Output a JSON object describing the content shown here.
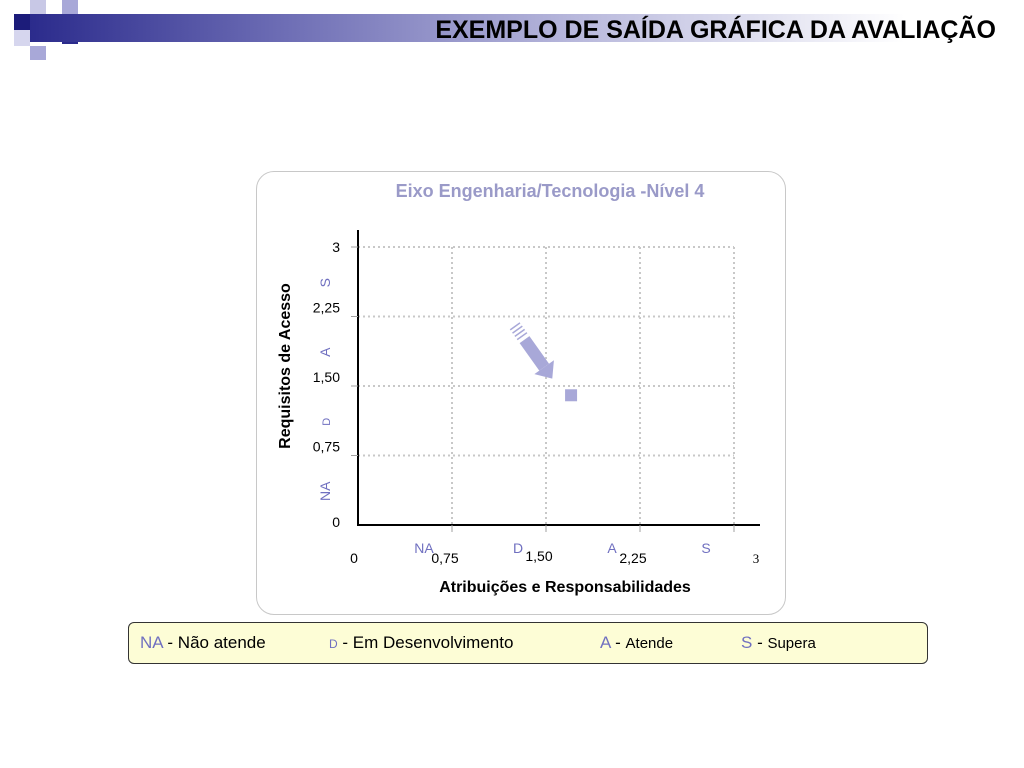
{
  "slide": {
    "title": "EXEMPLO DE SAÍDA GRÁFICA DA AVALIAÇÃO"
  },
  "colors": {
    "accent_dark": "#1c1c7a",
    "accent_light": "#a8a8d8",
    "category": "#7070c0",
    "title": "#9a9ac8",
    "legend_bg": "#fdfdd6"
  },
  "chart_data": {
    "type": "scatter",
    "title": "Eixo Engenharia/Tecnologia -Nível 4",
    "xlabel": "Atribuições e Responsabilidades",
    "ylabel": "Requisitos de Acesso",
    "xlim": [
      0,
      3
    ],
    "ylim": [
      0,
      3
    ],
    "x_ticks": [
      {
        "value": 0,
        "label": "0"
      },
      {
        "value": 0.75,
        "label": "0,75"
      },
      {
        "value": 1.5,
        "label": "1,50"
      },
      {
        "value": 2.25,
        "label": "2,25"
      },
      {
        "value": 3,
        "label": "3"
      }
    ],
    "y_ticks": [
      {
        "value": 0,
        "label": "0"
      },
      {
        "value": 0.75,
        "label": "0,75"
      },
      {
        "value": 1.5,
        "label": "1,50"
      },
      {
        "value": 2.25,
        "label": "2,25"
      },
      {
        "value": 3,
        "label": "3"
      }
    ],
    "x_categories": [
      {
        "label": "NA",
        "from": 0,
        "to": 0.75
      },
      {
        "label": "D",
        "from": 0.75,
        "to": 1.5
      },
      {
        "label": "A",
        "from": 1.5,
        "to": 2.25
      },
      {
        "label": "S",
        "from": 2.25,
        "to": 3
      }
    ],
    "y_categories": [
      {
        "label": "NA",
        "from": 0,
        "to": 0.75
      },
      {
        "label": "D",
        "from": 0.75,
        "to": 1.5
      },
      {
        "label": "A",
        "from": 1.5,
        "to": 2.25
      },
      {
        "label": "S",
        "from": 2.25,
        "to": 3
      }
    ],
    "points": [
      {
        "x": 1.7,
        "y": 1.4
      }
    ],
    "arrow": {
      "from": [
        1.25,
        2.15
      ],
      "to": [
        1.55,
        1.58
      ]
    },
    "grid": true
  },
  "legend": {
    "items": [
      {
        "code": "NA",
        "sep": " - ",
        "text": "Não atende"
      },
      {
        "code": "D",
        "sep": " - ",
        "text": "Em Desenvolvimento"
      },
      {
        "code": "A",
        "sep": " - ",
        "text": "Atende"
      },
      {
        "code": "S",
        "sep": " - ",
        "text": "Supera"
      }
    ]
  }
}
